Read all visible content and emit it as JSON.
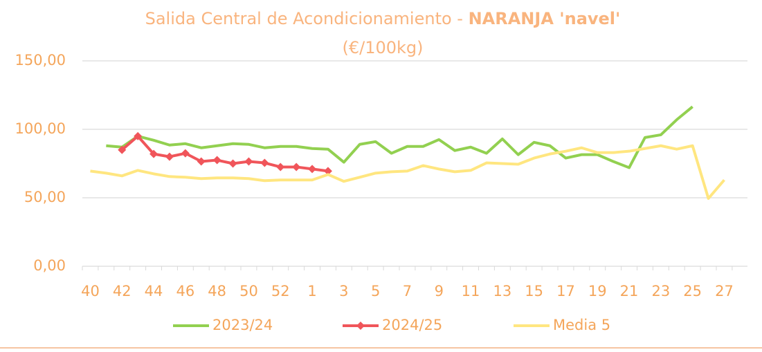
{
  "chart_data": {
    "type": "line",
    "title": [
      "Salida Central de Acondicionamiento - ",
      "NARANJA 'navel'"
    ],
    "subtitle": "(€/100kg)",
    "categories": [
      "40",
      null,
      "42",
      null,
      "44",
      null,
      "46",
      null,
      "48",
      null,
      "50",
      null,
      "52",
      null,
      "1",
      null,
      "3",
      null,
      "5",
      null,
      "7",
      null,
      "9",
      null,
      "11",
      null,
      "13",
      null,
      "15",
      null,
      "17",
      null,
      "19",
      null,
      "21",
      null,
      "23",
      null,
      "25",
      null,
      "27"
    ],
    "series": [
      {
        "name": "2023/24",
        "color": "#92d050",
        "values": [
          null,
          88,
          87,
          95,
          92,
          88.5,
          89.5,
          86.5,
          88,
          89.5,
          89,
          86.5,
          87.5,
          87.5,
          86,
          85.5,
          76,
          89,
          91,
          82.5,
          87.5,
          87.5,
          92.5,
          84.5,
          87,
          82.5,
          93,
          81.5,
          90.5,
          88,
          79,
          81.5,
          81.5,
          76.5,
          72,
          94,
          96,
          107,
          116.5,
          null,
          null
        ]
      },
      {
        "name": "2024/25",
        "color": "#f0555a",
        "marker": "diamond",
        "values": [
          null,
          null,
          85,
          95,
          82,
          80,
          82.5,
          76.5,
          77.5,
          75,
          76.5,
          75.5,
          72.5,
          72.5,
          71,
          69.5,
          null,
          null,
          null,
          null,
          null,
          null,
          null,
          null,
          null,
          null,
          null,
          null,
          null,
          null,
          null,
          null,
          null,
          null,
          null,
          null,
          null,
          null,
          null,
          null,
          null
        ]
      },
      {
        "name": "Media 5",
        "color": "#ffe680",
        "values": [
          69.5,
          68,
          66,
          70,
          67.5,
          65.5,
          65,
          64,
          64.5,
          64.5,
          64,
          62.5,
          63,
          63,
          63,
          67,
          62,
          65,
          68,
          69,
          69.5,
          73.5,
          71,
          69,
          70,
          75.5,
          75,
          74.5,
          79,
          82,
          84,
          86.5,
          83,
          83,
          84,
          86,
          88,
          85.5,
          88,
          49.5,
          63
        ]
      }
    ],
    "ylim": [
      0,
      150
    ],
    "yticks": [
      {
        "value": 0,
        "label": "0,00"
      },
      {
        "value": 50,
        "label": "50,00"
      },
      {
        "value": 100,
        "label": "100,00"
      },
      {
        "value": 150,
        "label": "150,00"
      }
    ],
    "grid": true,
    "legend": "bottom"
  }
}
